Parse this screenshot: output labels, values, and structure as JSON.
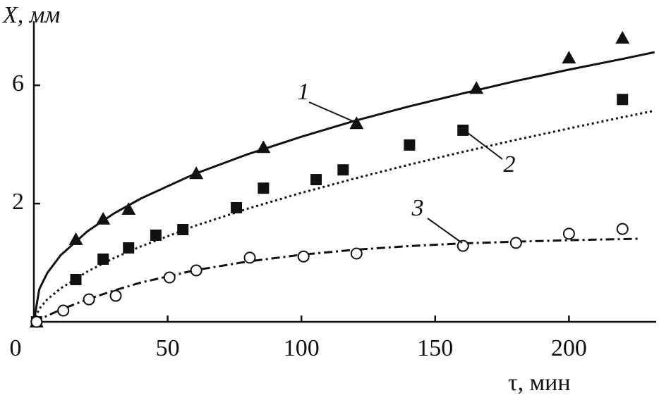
{
  "chart_data": {
    "type": "scatter",
    "y_label": "X, мм",
    "x_label": "τ, мин",
    "xlim": [
      0,
      232.6
    ],
    "xticks": [
      0,
      50,
      100,
      150,
      200
    ],
    "ylim": [
      -2,
      8.17
    ],
    "yticks": [
      2,
      6
    ],
    "color": "#111111",
    "series": [
      {
        "name": "1",
        "marker": "triangle",
        "line": "solid",
        "x": [
          1,
          15.7,
          25.9,
          35.4,
          60.7,
          85.8,
          120.6,
          165.4,
          200,
          220
        ],
        "values": [
          -2,
          0.79,
          1.48,
          1.81,
          3.02,
          3.9,
          4.71,
          5.9,
          6.93,
          7.6
        ],
        "fit_x": [
          0,
          2,
          5,
          10,
          20,
          30,
          40,
          60,
          80,
          100,
          120,
          140,
          160,
          180,
          200,
          220,
          232
        ],
        "fit_values": [
          -2,
          -0.9,
          -0.35,
          0.25,
          1.06,
          1.67,
          2.17,
          3.0,
          3.67,
          4.26,
          4.8,
          5.28,
          5.72,
          6.14,
          6.53,
          6.89,
          7.12
        ]
      },
      {
        "name": "2",
        "marker": "square",
        "line": "dotted",
        "x": [
          1,
          15.7,
          25.9,
          35.4,
          45.6,
          55.7,
          75.7,
          85.8,
          105.5,
          115.6,
          140.4,
          160.4,
          220
        ],
        "values": [
          -2,
          -0.57,
          0.12,
          0.5,
          0.93,
          1.12,
          1.86,
          2.52,
          2.81,
          3.14,
          3.98,
          4.48,
          5.52
        ],
        "fit_x": [
          0,
          2,
          5,
          10,
          20,
          30,
          40,
          60,
          80,
          100,
          120,
          140,
          160,
          180,
          200,
          220,
          232
        ],
        "fit_values": [
          -2,
          -1.56,
          -1.24,
          -0.87,
          -0.3,
          0.16,
          0.55,
          1.24,
          1.83,
          2.36,
          2.85,
          3.31,
          3.74,
          4.15,
          4.54,
          4.92,
          5.14
        ]
      },
      {
        "name": "3",
        "marker": "circle",
        "line": "dashdot",
        "x": [
          1,
          11,
          20.6,
          30.6,
          50.7,
          60.7,
          80.7,
          100.8,
          120.6,
          160.4,
          180.2,
          200,
          220
        ],
        "values": [
          -2,
          -1.62,
          -1.24,
          -1.12,
          -0.5,
          -0.26,
          0.17,
          0.21,
          0.31,
          0.57,
          0.67,
          0.98,
          1.14
        ],
        "fit_x": [
          0,
          10,
          20,
          30,
          40,
          60,
          80,
          100,
          120,
          140,
          160,
          180,
          200,
          226
        ],
        "fit_values": [
          -2,
          -1.59,
          -1.24,
          -0.94,
          -0.67,
          -0.26,
          0.04,
          0.27,
          0.44,
          0.56,
          0.65,
          0.71,
          0.76,
          0.81
        ]
      }
    ]
  }
}
